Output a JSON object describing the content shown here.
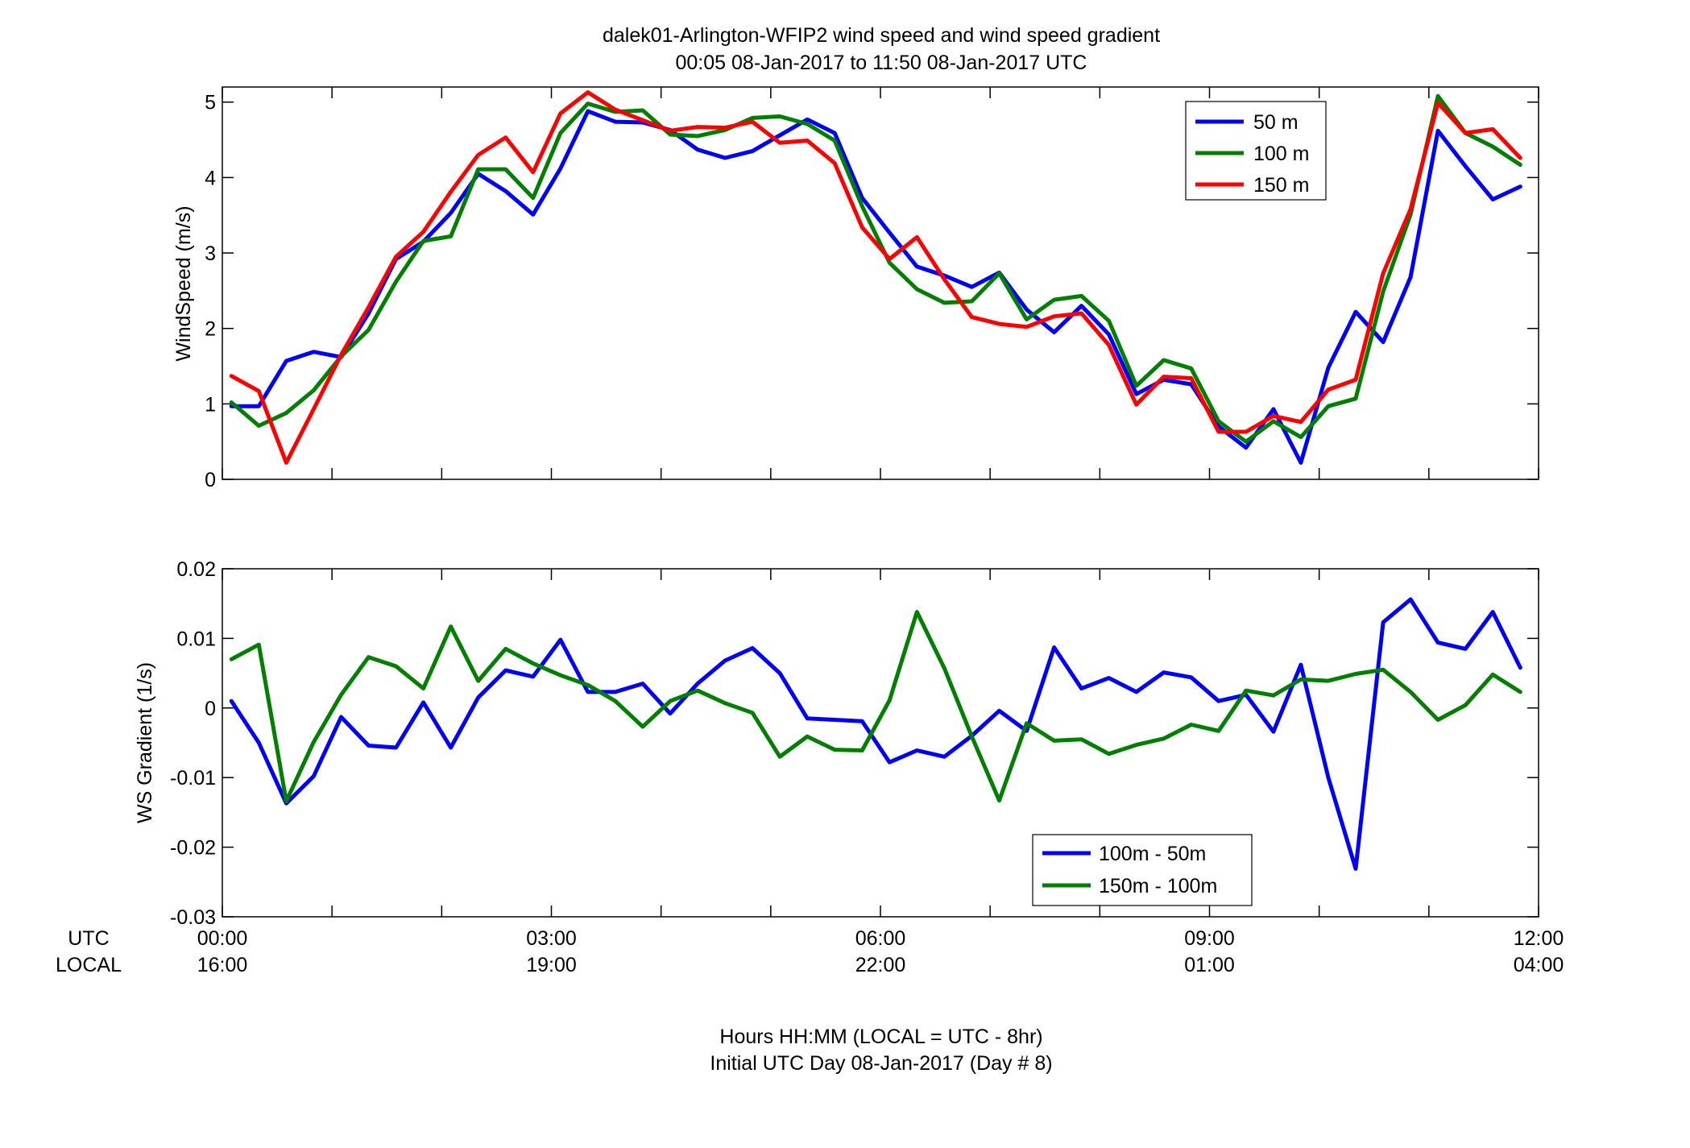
{
  "figure": {
    "title_line1": "dalek01-Arlington-WFIP2  wind speed and wind speed gradient",
    "title_line2": "00:05 08-Jan-2017 to 11:50 08-Jan-2017  UTC",
    "xlabel_line1": "Hours HH:MM  (LOCAL = UTC - 8hr)",
    "xlabel_line2": "Initial UTC Day 08-Jan-2017 (Day # 8)",
    "row_label_utc": "UTC",
    "row_label_local": "LOCAL",
    "x_ticks_utc": [
      "00:00",
      "03:00",
      "06:00",
      "09:00",
      "12:00"
    ],
    "x_ticks_local": [
      "16:00",
      "19:00",
      "22:00",
      "01:00",
      "04:00"
    ]
  },
  "chart_data": [
    {
      "type": "line",
      "ylabel": "WindSpeed (m/s)",
      "xlim": [
        0,
        12
      ],
      "ylim": [
        0,
        5.2
      ],
      "yticks": [
        0,
        1,
        2,
        3,
        4,
        5
      ],
      "ytick_labels": [
        "0",
        "1",
        "2",
        "3",
        "4",
        "5"
      ],
      "grid": false,
      "legend_position": "top-right",
      "x_hours": [
        0.083,
        0.333,
        0.583,
        0.833,
        1.083,
        1.333,
        1.583,
        1.833,
        2.083,
        2.333,
        2.583,
        2.833,
        3.083,
        3.333,
        3.583,
        3.833,
        4.083,
        4.333,
        4.583,
        4.833,
        5.083,
        5.333,
        5.583,
        5.833,
        6.083,
        6.333,
        6.583,
        6.833,
        7.083,
        7.333,
        7.583,
        7.833,
        8.083,
        8.333,
        8.583,
        8.833,
        9.083,
        9.333,
        9.583,
        9.833,
        10.083,
        10.333,
        10.583,
        10.833,
        11.083,
        11.333,
        11.583,
        11.833
      ],
      "series": [
        {
          "name": "50 m",
          "color": "#0000ff",
          "values": [
            0.97,
            0.97,
            1.57,
            1.69,
            1.62,
            2.2,
            2.92,
            3.15,
            3.53,
            4.05,
            3.82,
            3.51,
            4.12,
            4.88,
            4.74,
            4.73,
            4.63,
            4.37,
            4.26,
            4.35,
            4.56,
            4.77,
            4.59,
            3.73,
            3.27,
            2.82,
            2.7,
            2.55,
            2.74,
            2.25,
            1.95,
            2.3,
            1.92,
            1.13,
            1.32,
            1.26,
            0.7,
            0.42,
            0.93,
            0.22,
            1.48,
            2.22,
            1.82,
            2.68,
            4.62,
            4.15,
            3.71,
            3.88
          ]
        },
        {
          "name": "100 m",
          "color": "#007f00",
          "values": [
            1.02,
            0.71,
            0.88,
            1.18,
            1.63,
            1.98,
            2.62,
            3.16,
            3.22,
            4.11,
            4.11,
            3.73,
            4.59,
            4.98,
            4.87,
            4.89,
            4.57,
            4.55,
            4.63,
            4.79,
            4.81,
            4.71,
            4.49,
            3.62,
            2.87,
            2.52,
            2.34,
            2.36,
            2.73,
            2.12,
            2.38,
            2.43,
            2.1,
            1.24,
            1.58,
            1.47,
            0.77,
            0.5,
            0.77,
            0.56,
            0.97,
            1.07,
            2.49,
            3.51,
            5.08,
            4.59,
            4.41,
            4.17
          ]
        },
        {
          "name": "150 m",
          "color": "#ff0000",
          "values": [
            1.37,
            1.17,
            0.22,
            0.93,
            1.65,
            2.28,
            2.95,
            3.28,
            3.81,
            4.3,
            4.53,
            4.07,
            4.85,
            5.13,
            4.9,
            4.76,
            4.62,
            4.67,
            4.66,
            4.74,
            4.46,
            4.49,
            4.19,
            3.34,
            2.92,
            3.21,
            2.65,
            2.15,
            2.06,
            2.02,
            2.16,
            2.2,
            1.78,
            0.99,
            1.36,
            1.34,
            0.63,
            0.63,
            0.84,
            0.76,
            1.19,
            1.32,
            2.73,
            3.58,
            4.99,
            4.59,
            4.64,
            4.26
          ]
        }
      ]
    },
    {
      "type": "line",
      "ylabel": "WS Gradient (1/s)",
      "xlim": [
        0,
        12
      ],
      "ylim": [
        -0.03,
        0.02
      ],
      "yticks": [
        -0.03,
        -0.02,
        -0.01,
        0,
        0.01,
        0.02
      ],
      "ytick_labels": [
        "-0.03",
        "-0.02",
        "-0.01",
        "0",
        "0.01",
        "0.02"
      ],
      "grid": false,
      "legend_position": "bottom-center",
      "x_hours": [
        0.083,
        0.333,
        0.583,
        0.833,
        1.083,
        1.333,
        1.583,
        1.833,
        2.083,
        2.333,
        2.583,
        2.833,
        3.083,
        3.333,
        3.583,
        3.833,
        4.083,
        4.333,
        4.583,
        4.833,
        5.083,
        5.333,
        5.583,
        5.833,
        6.083,
        6.333,
        6.583,
        6.833,
        7.083,
        7.333,
        7.583,
        7.833,
        8.083,
        8.333,
        8.583,
        8.833,
        9.083,
        9.333,
        9.583,
        9.833,
        10.083,
        10.333,
        10.583,
        10.833,
        11.083,
        11.333,
        11.583,
        11.833
      ],
      "series": [
        {
          "name": "100m - 50m",
          "color": "#0000ff",
          "values": [
            0.001,
            -0.005,
            -0.0137,
            -0.0098,
            -0.0013,
            -0.0054,
            -0.0057,
            0.0008,
            -0.0057,
            0.0015,
            0.0054,
            0.0045,
            0.0098,
            0.0023,
            0.0023,
            0.0035,
            -0.0008,
            0.0035,
            0.0068,
            0.0086,
            0.005,
            -0.0015,
            -0.0017,
            -0.0019,
            -0.0078,
            -0.0061,
            -0.007,
            -0.004,
            -0.0004,
            -0.0033,
            0.0087,
            0.0028,
            0.0043,
            0.0023,
            0.0051,
            0.0044,
            0.001,
            0.0019,
            -0.0034,
            0.0062,
            -0.01,
            -0.0231,
            0.0123,
            0.0156,
            0.0094,
            0.0085,
            0.0138,
            0.0058
          ]
        },
        {
          "name": "150m - 100m",
          "color": "#007f00",
          "values": [
            0.007,
            0.0091,
            -0.0134,
            -0.0049,
            0.0019,
            0.0073,
            0.006,
            0.0028,
            0.0117,
            0.0039,
            0.0085,
            0.0064,
            0.0047,
            0.0033,
            0.001,
            -0.0027,
            0.001,
            0.0025,
            0.0007,
            -0.0007,
            -0.007,
            -0.0041,
            -0.006,
            -0.0061,
            0.0011,
            0.0138,
            0.0057,
            -0.0041,
            -0.0133,
            -0.0022,
            -0.0047,
            -0.0045,
            -0.0066,
            -0.0053,
            -0.0044,
            -0.0024,
            -0.0033,
            0.0025,
            0.0018,
            0.0041,
            0.0039,
            0.0049,
            0.0055,
            0.0023,
            -0.0017,
            0.0004,
            0.0048,
            0.0023
          ]
        }
      ]
    }
  ]
}
